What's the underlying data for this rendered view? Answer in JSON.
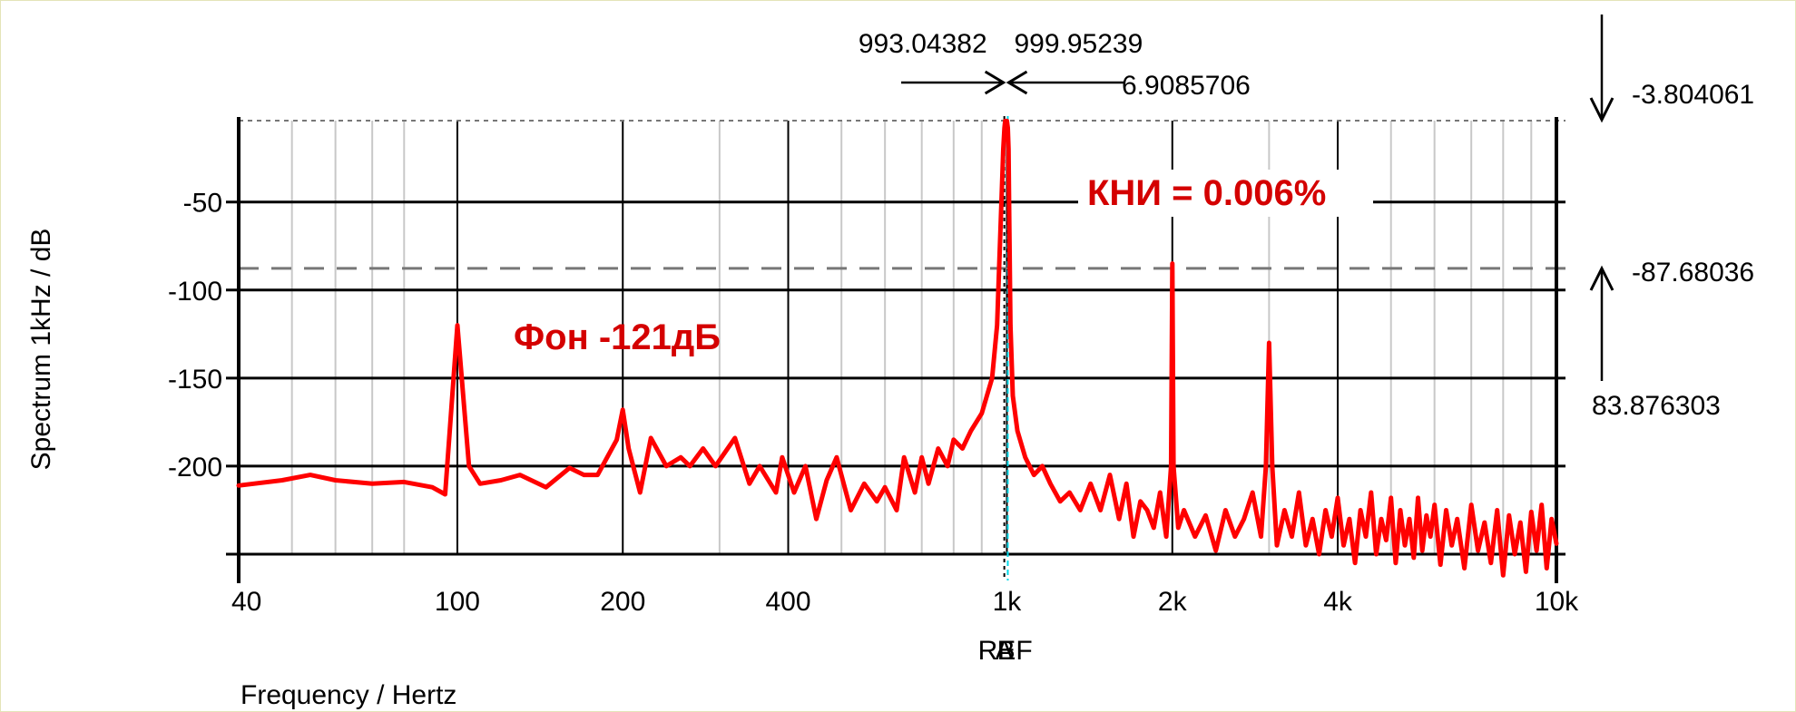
{
  "chart_data": {
    "type": "line",
    "xlabel": "Frequency / Hertz",
    "ylabel": "Spectrum 1kHz / dB",
    "x_scale": "log",
    "xlim": [
      40,
      10000
    ],
    "ylim": [
      -250,
      -3.804061
    ],
    "grid": true,
    "x_ticks": [
      {
        "value": 40,
        "label": "40"
      },
      {
        "value": 100,
        "label": "100"
      },
      {
        "value": 200,
        "label": "200"
      },
      {
        "value": 400,
        "label": "400"
      },
      {
        "value": 1000,
        "label": "1k"
      },
      {
        "value": 2000,
        "label": "2k"
      },
      {
        "value": 4000,
        "label": "4k"
      },
      {
        "value": 10000,
        "label": "10k"
      }
    ],
    "x_minor_grid": [
      50,
      60,
      70,
      80,
      300,
      500,
      600,
      700,
      800,
      900,
      3000,
      5000,
      6000,
      7000,
      8000,
      9000
    ],
    "y_ticks": [
      {
        "value": -50,
        "label": "-50"
      },
      {
        "value": -100,
        "label": "-100"
      },
      {
        "value": -150,
        "label": "-150"
      },
      {
        "value": -200,
        "label": "-200"
      }
    ],
    "y_major_lines": [
      -50,
      -100,
      -150,
      -200,
      -250
    ],
    "series": [
      {
        "color": "#ff0000",
        "x": [
          40,
          48,
          54,
          60,
          70,
          80,
          90,
          95,
          100,
          105,
          110,
          120,
          130,
          145,
          160,
          170,
          180,
          195,
          200,
          205,
          215,
          225,
          240,
          255,
          265,
          280,
          295,
          320,
          340,
          355,
          380,
          390,
          410,
          430,
          450,
          470,
          490,
          520,
          550,
          580,
          600,
          630,
          650,
          680,
          700,
          720,
          750,
          780,
          800,
          830,
          860,
          900,
          940,
          960,
          975,
          985,
          990,
          993,
          996,
          1000,
          1004,
          1007,
          1010,
          1015,
          1025,
          1045,
          1080,
          1120,
          1160,
          1200,
          1250,
          1300,
          1360,
          1420,
          1480,
          1540,
          1600,
          1650,
          1700,
          1750,
          1800,
          1850,
          1900,
          1950,
          1990,
          2000,
          2010,
          2050,
          2100,
          2200,
          2300,
          2400,
          2500,
          2600,
          2700,
          2800,
          2900,
          2960,
          3000,
          3040,
          3100,
          3200,
          3300,
          3400,
          3500,
          3600,
          3700,
          3800,
          3900,
          4000,
          4100,
          4200,
          4300,
          4400,
          4500,
          4600,
          4700,
          4800,
          4900,
          5000,
          5100,
          5200,
          5300,
          5400,
          5500,
          5600,
          5700,
          5800,
          5900,
          6000,
          6150,
          6300,
          6450,
          6600,
          6800,
          7000,
          7200,
          7400,
          7600,
          7800,
          8000,
          8200,
          8400,
          8600,
          8800,
          9000,
          9200,
          9400,
          9600,
          9800,
          10000
        ],
        "y": [
          -211,
          -208,
          -205,
          -208,
          -210,
          -209,
          -212,
          -216,
          -120,
          -200,
          -210,
          -208,
          -205,
          -212,
          -201,
          -205,
          -205,
          -185,
          -168,
          -190,
          -215,
          -184,
          -200,
          -195,
          -200,
          -190,
          -200,
          -184,
          -210,
          -200,
          -215,
          -195,
          -215,
          -200,
          -230,
          -208,
          -195,
          -225,
          -210,
          -220,
          -212,
          -225,
          -195,
          -215,
          -195,
          -210,
          -190,
          -200,
          -185,
          -190,
          -180,
          -170,
          -150,
          -120,
          -60,
          -20,
          -8,
          -4,
          -4,
          -4,
          -8,
          -20,
          -60,
          -120,
          -160,
          -180,
          -195,
          -205,
          -200,
          -210,
          -220,
          -215,
          -225,
          -210,
          -225,
          -205,
          -230,
          -210,
          -240,
          -220,
          -225,
          -235,
          -215,
          -240,
          -200,
          -85,
          -200,
          -235,
          -225,
          -240,
          -228,
          -248,
          -225,
          -240,
          -230,
          -215,
          -240,
          -200,
          -130,
          -200,
          -245,
          -225,
          -240,
          -215,
          -245,
          -230,
          -250,
          -225,
          -240,
          -218,
          -245,
          -230,
          -255,
          -225,
          -240,
          -215,
          -250,
          -230,
          -242,
          -218,
          -255,
          -225,
          -245,
          -230,
          -252,
          -218,
          -248,
          -228,
          -240,
          -222,
          -256,
          -225,
          -245,
          -230,
          -258,
          -222,
          -248,
          -232,
          -255,
          -225,
          -262,
          -228,
          -250,
          -232,
          -260,
          -226,
          -248,
          -222,
          -258,
          -230,
          -244
        ]
      }
    ],
    "cursors": {
      "cursor_a_x": 993.04382,
      "cursor_b_x": 999.95239,
      "delta_x": 6.9085706,
      "level_top": -3.804061,
      "level_harmonic": -87.68036,
      "delta_level": 83.876303,
      "cursor_a_label": "993.04382",
      "cursor_b_label": "999.95239",
      "delta_x_label": "6.9085706",
      "level_top_label": "-3.804061",
      "level_harmonic_label": "-87.68036",
      "delta_level_label": "83.876303",
      "marker_labels": [
        "REF",
        "A",
        "B"
      ]
    },
    "annotations": [
      {
        "text": "КНИ = 0.006%",
        "color": "#d40000"
      },
      {
        "text": "Фон -121дБ",
        "color": "#d40000"
      }
    ]
  }
}
